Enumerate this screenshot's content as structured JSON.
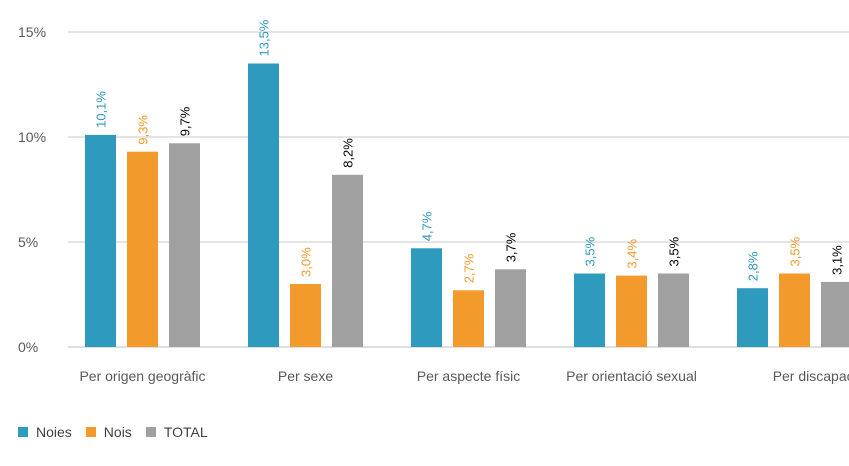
{
  "chart_data": {
    "type": "bar",
    "categories": [
      "Per origen geogràfic",
      "Per sexe",
      "Per aspecte físic",
      "Per orientació sexual",
      "Per discapacitat"
    ],
    "series": [
      {
        "name": "Noies",
        "color": "#2e9abe",
        "label_color": "#2e9abe",
        "values": [
          10.1,
          13.5,
          4.7,
          3.5,
          2.8
        ],
        "labels": [
          "10,1%",
          "13,5%",
          "4,7%",
          "3,5%",
          "2,8%"
        ]
      },
      {
        "name": "Nois",
        "color": "#f39a2c",
        "label_color": "#f39a2c",
        "values": [
          9.3,
          3.0,
          2.7,
          3.4,
          3.5
        ],
        "labels": [
          "9,3%",
          "3,0%",
          "2,7%",
          "3,4%",
          "3,5%"
        ]
      },
      {
        "name": "TOTAL",
        "color": "#a0a0a0",
        "label_color": "#000000",
        "values": [
          9.7,
          8.2,
          3.7,
          3.5,
          3.1
        ],
        "labels": [
          "9,7%",
          "8,2%",
          "3,7%",
          "3,5%",
          "3,1%"
        ]
      }
    ],
    "yticks": [
      0,
      5,
      10,
      15
    ],
    "ytick_labels": [
      "0%",
      "5%",
      "10%",
      "15%"
    ],
    "ylim": [
      0,
      15
    ],
    "grid": true,
    "legend_position": "bottom-left"
  }
}
